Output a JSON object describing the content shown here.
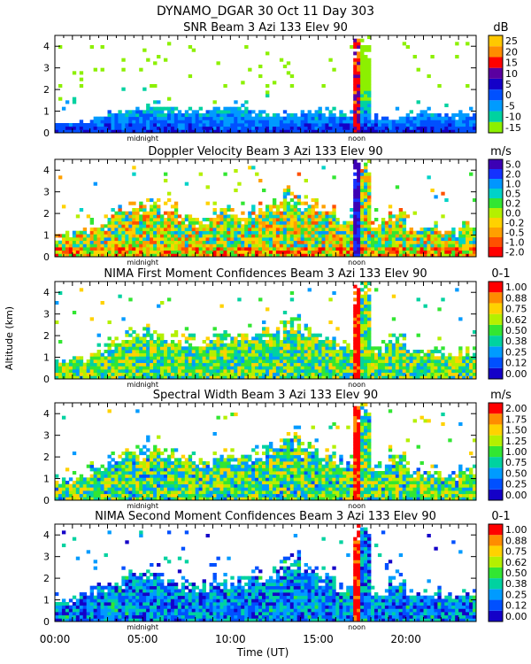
{
  "header": {
    "title": "DYNAMO_DGAR  30 Oct 11 Day 303"
  },
  "chart_data": {
    "type": "heatmap",
    "ylabel": "Altitude (km)",
    "xlabel": "Time (UT)",
    "xlim": [
      0,
      24
    ],
    "ylim": [
      0,
      4.5
    ],
    "x_ticks": [
      "00:00",
      "05:00",
      "10:00",
      "15:00",
      "20:00"
    ],
    "x_tick_values": [
      0,
      5,
      10,
      15,
      20
    ],
    "y_ticks": [
      "0",
      "1",
      "2",
      "3",
      "4"
    ],
    "y_tick_values": [
      0,
      1,
      2,
      3,
      4
    ],
    "markers": [
      {
        "label": "midnight",
        "x": 5.0
      },
      {
        "label": "noon",
        "x": 17.2
      }
    ],
    "panels": [
      {
        "title": "SNR Beam 3 Azi 133 Elev 90",
        "unit": "dB",
        "scale": [
          "-15",
          "-10",
          "-5",
          "0",
          "5",
          "10",
          "15",
          "20",
          "25"
        ],
        "colors": [
          "#8cf000",
          "#00d2a0",
          "#009bff",
          "#0050ff",
          "#1400c8",
          "#5a00a0",
          "#ff0000",
          "#ff8c00",
          "#ffc800"
        ],
        "top_alt": [
          0.45,
          0.55,
          0.7,
          0.9,
          1.1,
          1.3,
          1.2,
          1.0,
          1.1,
          1.3,
          1.2,
          1.0,
          0.9,
          0.9,
          1.0,
          1.0,
          0.9,
          4.5,
          0.8,
          0.7,
          0.9,
          0.9,
          0.8,
          1.0
        ]
      },
      {
        "title": "Doppler Velocity Beam 3 Azi 133 Elev 90",
        "unit": "m/s",
        "scale": [
          "-2.0",
          "-1.0",
          "-0.5",
          "-0.2",
          "0.0",
          "0.2",
          "0.5",
          "1.0",
          "2.0",
          "5.0"
        ],
        "colors": [
          "#ff0000",
          "#ff5000",
          "#ffa000",
          "#ffd200",
          "#b4f000",
          "#32e632",
          "#00d2c8",
          "#0096ff",
          "#1432ff",
          "#3c00b4"
        ],
        "top_alt": [
          1.0,
          1.2,
          1.5,
          2.2,
          2.4,
          2.6,
          2.3,
          2.0,
          1.6,
          2.4,
          2.0,
          2.2,
          2.5,
          3.0,
          2.6,
          2.2,
          1.8,
          4.5,
          1.6,
          2.2,
          1.3,
          1.4,
          1.2,
          1.6
        ]
      },
      {
        "title": "NIMA First Moment Confidences Beam 3 Azi 133 Elev 90",
        "unit": "0-1",
        "scale": [
          "0.00",
          "0.12",
          "0.25",
          "0.38",
          "0.50",
          "0.62",
          "0.75",
          "0.88",
          "1.00"
        ],
        "colors": [
          "#1400c8",
          "#0050ff",
          "#009bff",
          "#00d2a0",
          "#32e632",
          "#b4f000",
          "#ffd200",
          "#ff8c00",
          "#ff0000"
        ],
        "top_alt": [
          0.9,
          1.0,
          1.4,
          1.8,
          2.2,
          2.4,
          2.0,
          1.8,
          1.7,
          2.0,
          2.1,
          2.2,
          2.3,
          2.8,
          2.4,
          2.0,
          1.6,
          4.5,
          1.5,
          2.0,
          1.3,
          1.3,
          1.2,
          1.3
        ]
      },
      {
        "title": "Spectral Width Beam 3 Azi 133 Elev 90",
        "unit": "m/s",
        "scale": [
          "0.00",
          "0.25",
          "0.50",
          "0.75",
          "1.00",
          "1.25",
          "1.50",
          "1.75",
          "2.00"
        ],
        "colors": [
          "#1400c8",
          "#0050ff",
          "#009bff",
          "#00d2a0",
          "#32e632",
          "#b4f000",
          "#ffd200",
          "#ff8c00",
          "#ff0000"
        ],
        "top_alt": [
          1.0,
          1.2,
          1.5,
          2.0,
          2.4,
          2.6,
          2.2,
          2.0,
          1.8,
          2.2,
          2.0,
          2.2,
          2.5,
          3.0,
          2.6,
          2.2,
          1.8,
          4.5,
          1.6,
          2.2,
          1.3,
          1.4,
          1.2,
          1.5
        ]
      },
      {
        "title": "NIMA Second Moment Confidences Beam 3 Azi 133 Elev 90",
        "unit": "0-1",
        "scale": [
          "0.00",
          "0.12",
          "0.25",
          "0.38",
          "0.50",
          "0.62",
          "0.75",
          "0.88",
          "1.00"
        ],
        "colors": [
          "#1400c8",
          "#0050ff",
          "#009bff",
          "#00d2a0",
          "#32e632",
          "#b4f000",
          "#ffd200",
          "#ff8c00",
          "#ff0000"
        ],
        "top_alt": [
          1.0,
          1.2,
          1.5,
          1.8,
          2.2,
          2.4,
          2.0,
          1.8,
          1.7,
          2.0,
          2.0,
          2.2,
          2.3,
          2.8,
          2.4,
          2.0,
          1.6,
          4.5,
          1.5,
          2.0,
          1.5,
          1.4,
          1.3,
          1.5
        ]
      }
    ]
  }
}
